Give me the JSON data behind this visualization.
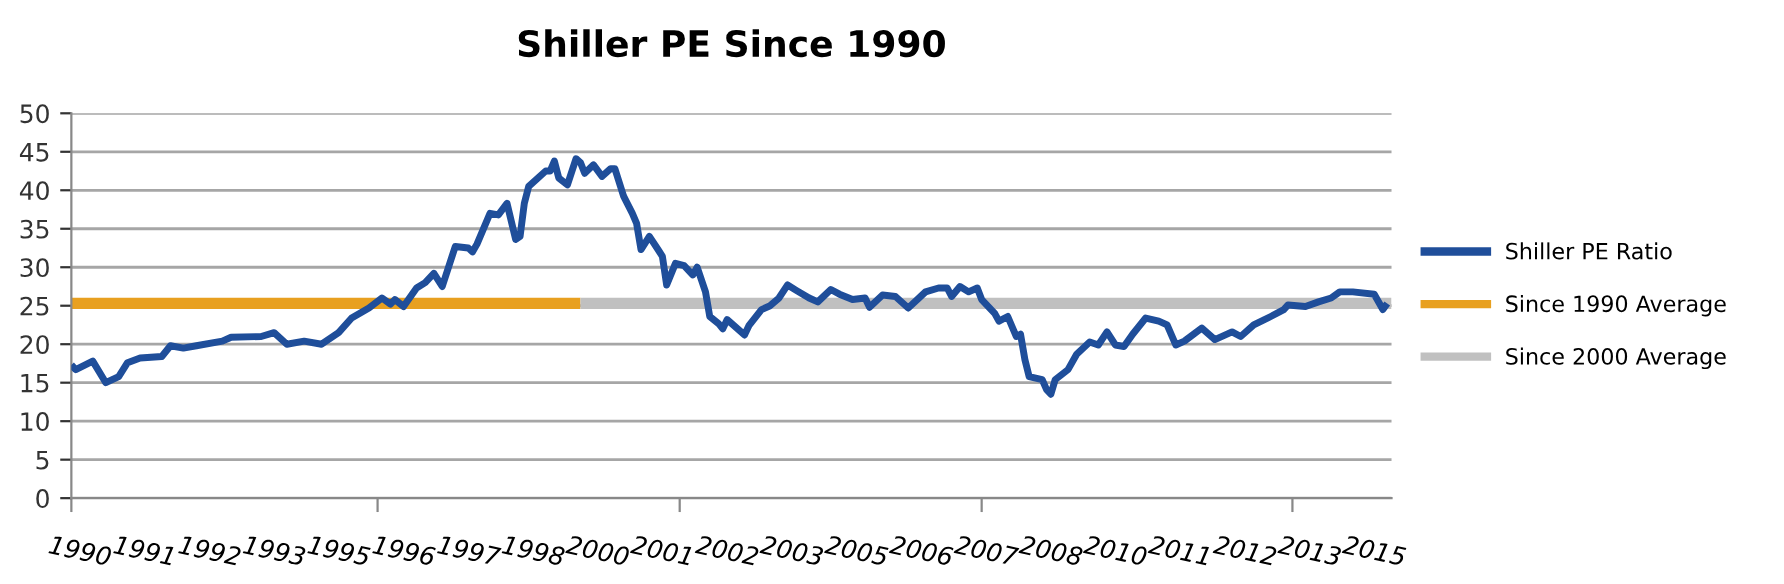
{
  "chart_data": {
    "type": "line",
    "title": "Shiller PE Since 1990",
    "series": [
      {
        "name": "Shiller PE Ratio",
        "color": "#1f4e9a",
        "x": [
          "1990-01",
          "1990-02",
          "1990-06",
          "1990-09",
          "1990-12",
          "1991-02",
          "1991-05",
          "1991-10",
          "1991-12",
          "1992-03",
          "1992-06",
          "1992-12",
          "1993-02",
          "1993-09",
          "1993-12",
          "1994-03",
          "1994-07",
          "1994-11",
          "1995-03",
          "1995-06",
          "1995-10",
          "1996-01",
          "1996-03",
          "1996-04",
          "1996-06",
          "1996-09",
          "1996-11",
          "1997-01",
          "1997-03",
          "1997-06",
          "1997-09",
          "1997-10",
          "1997-11",
          "1998-02",
          "1998-04",
          "1998-06",
          "1998-08",
          "1998-09",
          "1998-10",
          "1998-11",
          "1999-03",
          "1999-04",
          "1999-05",
          "1999-06",
          "1999-08",
          "1999-10",
          "1999-11",
          "1999-12",
          "2000-02",
          "2000-04",
          "2000-06",
          "2000-07",
          "2000-09",
          "2000-11",
          "2000-12",
          "2001-01",
          "2001-03",
          "2001-05",
          "2001-06",
          "2001-07",
          "2001-09",
          "2001-11",
          "2002-01",
          "2002-02",
          "2002-04",
          "2002-05",
          "2002-07",
          "2002-08",
          "2002-09",
          "2002-10",
          "2003-01",
          "2003-02",
          "2003-05",
          "2003-07",
          "2003-09",
          "2003-11",
          "2004-01",
          "2004-04",
          "2004-06",
          "2004-09",
          "2004-11",
          "2005-02",
          "2005-05",
          "2005-06",
          "2005-09",
          "2005-12",
          "2006-03",
          "2006-07",
          "2006-10",
          "2006-12",
          "2007-01",
          "2007-03",
          "2007-05",
          "2007-07",
          "2007-08",
          "2007-11",
          "2007-12",
          "2008-02",
          "2008-04",
          "2008-05",
          "2008-06",
          "2008-07",
          "2008-10",
          "2008-11",
          "2008-12",
          "2009-01",
          "2009-04",
          "2009-06",
          "2009-09",
          "2009-11",
          "2010-01",
          "2010-03",
          "2010-05",
          "2010-07",
          "2010-10",
          "2011-01",
          "2011-03",
          "2011-05",
          "2011-07",
          "2011-11",
          "2012-02",
          "2012-06",
          "2012-08",
          "2012-11",
          "2013-03",
          "2013-06",
          "2013-07",
          "2013-11",
          "2014-02",
          "2014-05",
          "2014-07",
          "2014-10",
          "2015-03",
          "2015-05",
          "2015-06"
        ],
        "values": [
          17.3,
          16.7,
          17.8,
          15.0,
          15.8,
          17.6,
          18.2,
          18.4,
          19.8,
          19.5,
          19.8,
          20.4,
          20.9,
          21.0,
          21.5,
          20.0,
          20.4,
          20.0,
          21.5,
          23.4,
          24.7,
          26.0,
          25.2,
          25.8,
          24.9,
          27.3,
          28.0,
          29.2,
          27.5,
          32.7,
          32.5,
          32.0,
          33.0,
          37.0,
          36.8,
          38.3,
          33.6,
          34.0,
          38.3,
          40.5,
          42.5,
          42.5,
          43.8,
          41.6,
          40.7,
          44.1,
          43.6,
          42.2,
          43.3,
          41.8,
          42.8,
          42.8,
          39.2,
          37.0,
          35.7,
          32.3,
          34.0,
          32.3,
          31.4,
          27.7,
          30.5,
          30.2,
          29.0,
          30.0,
          26.8,
          23.6,
          22.7,
          22.0,
          23.2,
          22.7,
          21.2,
          22.4,
          24.5,
          25.0,
          26.0,
          27.7,
          27.0,
          26.0,
          25.5,
          27.1,
          26.5,
          25.8,
          26.0,
          24.8,
          26.4,
          26.2,
          24.7,
          26.8,
          27.3,
          27.3,
          26.2,
          27.5,
          26.8,
          27.3,
          25.8,
          24.0,
          23.0,
          23.6,
          21.0,
          21.3,
          18.0,
          15.8,
          15.4,
          14.1,
          13.5,
          15.4,
          16.7,
          18.7,
          20.3,
          19.9,
          21.6,
          19.9,
          19.7,
          21.3,
          23.4,
          23.0,
          22.5,
          19.9,
          20.4,
          22.1,
          20.6,
          21.6,
          21.0,
          22.5,
          23.6,
          24.5,
          25.1,
          24.9,
          25.5,
          26.0,
          26.8,
          26.8,
          26.5,
          24.5,
          25.3
        ]
      },
      {
        "name": "Since 1990 Average",
        "color": "#e8a020",
        "x": [
          "1990-01",
          "1999-11"
        ],
        "values": [
          25.3,
          25.3
        ]
      },
      {
        "name": "Since 2000 Average",
        "color": "#c0c0c0",
        "x": [
          "1999-11",
          "2015-07"
        ],
        "values": [
          25.3,
          25.3
        ]
      }
    ],
    "xlim": [
      "1990-01",
      "2015-07"
    ],
    "ylim": [
      0,
      50
    ],
    "yticks": [
      0,
      5,
      10,
      15,
      20,
      25,
      30,
      35,
      40,
      45,
      50
    ],
    "xticks": [
      {
        "value": "1990-03",
        "label": "1990"
      },
      {
        "value": "1991-06",
        "label": "1991"
      },
      {
        "value": "1992-09",
        "label": "1992"
      },
      {
        "value": "1993-12",
        "label": "1993"
      },
      {
        "value": "1995-03",
        "label": "1995"
      },
      {
        "value": "1996-06",
        "label": "1996"
      },
      {
        "value": "1997-09",
        "label": "1997"
      },
      {
        "value": "1998-12",
        "label": "1998"
      },
      {
        "value": "2000-03",
        "label": "2000"
      },
      {
        "value": "2001-06",
        "label": "2001"
      },
      {
        "value": "2002-09",
        "label": "2002"
      },
      {
        "value": "2003-12",
        "label": "2003"
      },
      {
        "value": "2005-03",
        "label": "2005"
      },
      {
        "value": "2006-06",
        "label": "2006"
      },
      {
        "value": "2007-09",
        "label": "2007"
      },
      {
        "value": "2008-12",
        "label": "2008"
      },
      {
        "value": "2010-03",
        "label": "2010"
      },
      {
        "value": "2011-06",
        "label": "2011"
      },
      {
        "value": "2012-09",
        "label": "2012"
      },
      {
        "value": "2013-12",
        "label": "2013"
      },
      {
        "value": "2015-03",
        "label": "2015"
      },
      {
        "value": "1990-01",
        "label": null
      },
      {
        "value": "1995-12",
        "label": null
      },
      {
        "value": "2001-10",
        "label": null
      },
      {
        "value": "2007-08",
        "label": null
      },
      {
        "value": "2013-08",
        "label": null
      }
    ],
    "grid": "y",
    "legend": "right",
    "marker": "none",
    "line_style": "solid"
  }
}
